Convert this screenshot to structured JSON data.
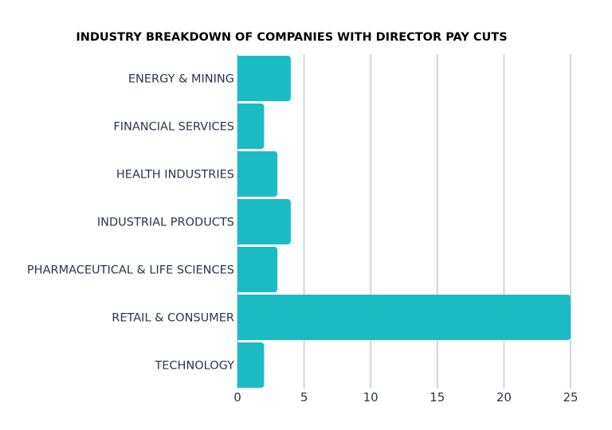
{
  "chart_data": {
    "type": "bar",
    "orientation": "horizontal",
    "title": "INDUSTRY BREAKDOWN OF COMPANIES WITH DIRECTOR PAY CUTS",
    "categories": [
      "ENERGY & MINING",
      "FINANCIAL SERVICES",
      "HEALTH INDUSTRIES",
      "INDUSTRIAL PRODUCTS",
      "PHARMACEUTICAL & LIFE SCIENCES",
      "RETAIL & CONSUMER",
      "TECHNOLOGY"
    ],
    "values": [
      4,
      2,
      3,
      4,
      3,
      25,
      2
    ],
    "xlim": [
      0,
      25
    ],
    "xticks": [
      "0",
      "5",
      "10",
      "15",
      "20",
      "25"
    ],
    "xlabel": "",
    "ylabel": "",
    "grid": "vertical",
    "legend": "none",
    "colors": {
      "bar": "#1bbbc3",
      "grid": "#d3d5da",
      "text": "#2b3548",
      "title": "#000000"
    }
  }
}
